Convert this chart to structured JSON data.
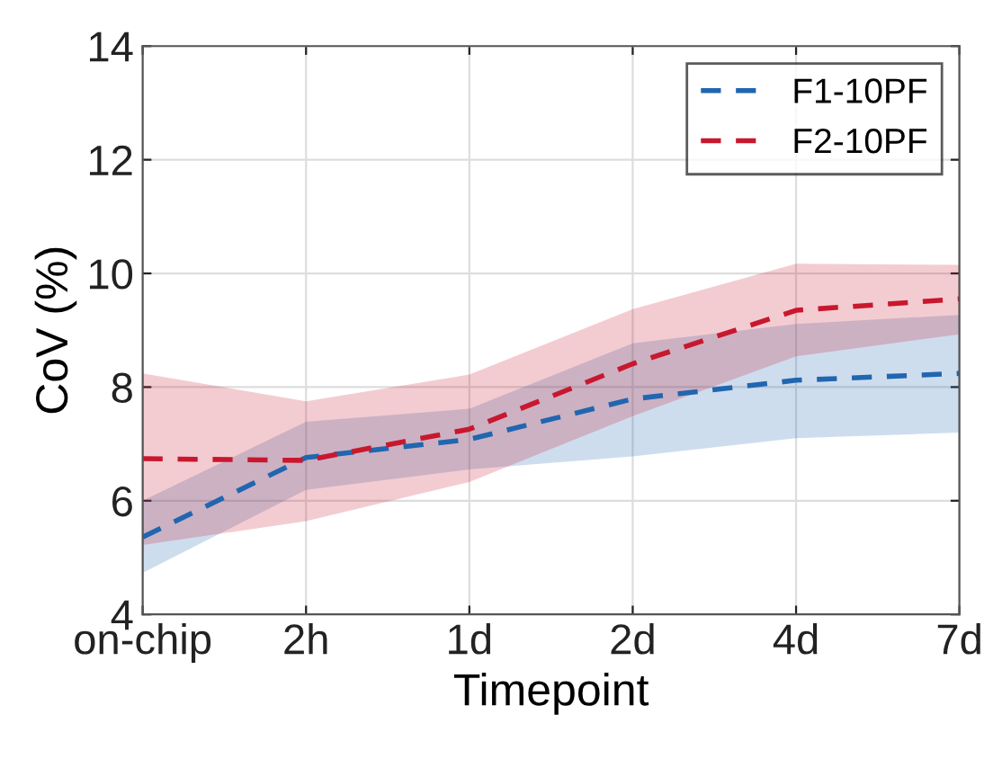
{
  "chart_data": {
    "type": "line",
    "xlabel": "Timepoint",
    "ylabel": "CoV (%)",
    "categories": [
      "on-chip",
      "2h",
      "1d",
      "2d",
      "4d",
      "7d"
    ],
    "series": [
      {
        "name": "F1-10PF",
        "color": "#2166b0",
        "values": [
          5.36,
          6.76,
          7.08,
          7.79,
          8.12,
          8.24
        ],
        "lower": [
          4.73,
          6.19,
          6.55,
          6.78,
          7.1,
          7.2
        ],
        "upper": [
          6.0,
          7.39,
          7.62,
          8.77,
          9.11,
          9.27
        ]
      },
      {
        "name": "F2-10PF",
        "color": "#c8182e",
        "values": [
          6.74,
          6.71,
          7.26,
          8.41,
          9.35,
          9.55
        ],
        "lower": [
          5.22,
          5.64,
          6.33,
          7.49,
          8.54,
          8.93
        ],
        "upper": [
          8.24,
          7.75,
          8.22,
          9.37,
          10.17,
          10.15
        ]
      }
    ],
    "ylim": [
      4,
      14
    ],
    "yticks": [
      4,
      6,
      8,
      10,
      12,
      14
    ],
    "grid": true,
    "legend": "top right",
    "line_style": "dashed",
    "marker": "none"
  }
}
